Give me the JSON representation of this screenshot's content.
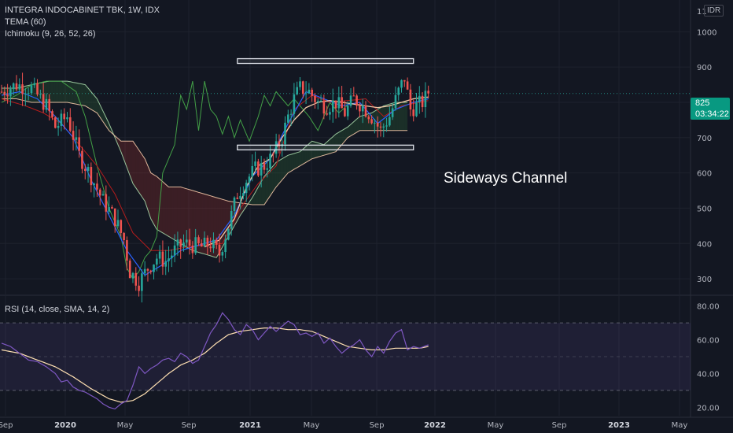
{
  "header": {
    "symbol_line": "INTEGRA INDOCABINET TBK, 1W, IDX",
    "indicator_tema": "TEMA (60)",
    "indicator_ichimoku": "Ichimoku (9, 26, 52, 26)",
    "indicator_rsi": "RSI (14, close, SMA, 14, 2)",
    "currency": "IDR"
  },
  "last_price": {
    "value": "825",
    "countdown": "03:34:22"
  },
  "annotation": "Sideways Channel",
  "colors": {
    "background": "#131722",
    "up": "#26a69a",
    "down": "#ef5350",
    "tema": "#f5c9a8",
    "tenkan": "#2962ff",
    "kijun": "#b71c1c",
    "chikou": "#43a047",
    "span_a": "#a5d6a7",
    "span_b": "#f5c9a8",
    "rsi": "#7e57c2",
    "rsi_ma": "#ffe0b2"
  },
  "chart_data": [
    {
      "type": "candlestick",
      "title": "INTEGRA INDOCABINET TBK, 1W, IDX",
      "x_ticks": [
        "Sep",
        "2020",
        "May",
        "Sep",
        "2021",
        "May",
        "Sep",
        "2022",
        "May",
        "Sep",
        "2023",
        "May"
      ],
      "y_ticks": [
        300,
        400,
        500,
        600,
        700,
        800,
        900,
        1000
      ],
      "y_top_label": "11",
      "ylim": [
        260,
        1090
      ],
      "close_anchors": [
        [
          0,
          830
        ],
        [
          5,
          850
        ],
        [
          10,
          840
        ],
        [
          15,
          790
        ],
        [
          18,
          730
        ],
        [
          22,
          760
        ],
        [
          26,
          650
        ],
        [
          30,
          590
        ],
        [
          34,
          520
        ],
        [
          38,
          470
        ],
        [
          41,
          410
        ],
        [
          43,
          320
        ],
        [
          46,
          290
        ],
        [
          49,
          330
        ],
        [
          52,
          360
        ],
        [
          55,
          350
        ],
        [
          58,
          380
        ],
        [
          61,
          400
        ],
        [
          64,
          395
        ],
        [
          67,
          390
        ],
        [
          70,
          400
        ],
        [
          73,
          370
        ],
        [
          76,
          450
        ],
        [
          79,
          540
        ],
        [
          82,
          580
        ],
        [
          85,
          610
        ],
        [
          88,
          620
        ],
        [
          91,
          650
        ],
        [
          94,
          700
        ],
        [
          96,
          760
        ],
        [
          98,
          810
        ],
        [
          100,
          840
        ],
        [
          103,
          830
        ],
        [
          106,
          800
        ],
        [
          109,
          790
        ],
        [
          112,
          800
        ],
        [
          115,
          770
        ],
        [
          118,
          810
        ],
        [
          121,
          790
        ],
        [
          124,
          760
        ],
        [
          127,
          720
        ],
        [
          130,
          760
        ],
        [
          133,
          830
        ],
        [
          135,
          870
        ],
        [
          137,
          780
        ],
        [
          139,
          790
        ],
        [
          141,
          800
        ],
        [
          143,
          825
        ]
      ],
      "tema_anchors": [
        [
          68,
          390
        ],
        [
          73,
          410
        ],
        [
          78,
          470
        ],
        [
          82,
          560
        ],
        [
          86,
          620
        ],
        [
          90,
          640
        ],
        [
          94,
          700
        ],
        [
          98,
          750
        ],
        [
          102,
          785
        ],
        [
          106,
          800
        ],
        [
          110,
          805
        ],
        [
          114,
          800
        ],
        [
          118,
          795
        ],
        [
          122,
          790
        ],
        [
          126,
          785
        ],
        [
          130,
          790
        ],
        [
          134,
          800
        ],
        [
          138,
          810
        ],
        [
          143,
          815
        ]
      ],
      "tenkan_anchors": [
        [
          0,
          820
        ],
        [
          6,
          830
        ],
        [
          12,
          810
        ],
        [
          18,
          760
        ],
        [
          24,
          700
        ],
        [
          30,
          580
        ],
        [
          36,
          480
        ],
        [
          42,
          380
        ],
        [
          48,
          310
        ],
        [
          54,
          340
        ],
        [
          60,
          380
        ],
        [
          66,
          395
        ],
        [
          72,
          410
        ],
        [
          78,
          480
        ],
        [
          84,
          590
        ],
        [
          90,
          640
        ],
        [
          96,
          740
        ],
        [
          102,
          830
        ],
        [
          108,
          810
        ],
        [
          114,
          790
        ],
        [
          120,
          800
        ],
        [
          126,
          740
        ],
        [
          132,
          780
        ],
        [
          138,
          800
        ],
        [
          143,
          810
        ]
      ],
      "kijun_anchors": [
        [
          0,
          810
        ],
        [
          8,
          790
        ],
        [
          14,
          770
        ],
        [
          20,
          740
        ],
        [
          26,
          680
        ],
        [
          32,
          620
        ],
        [
          38,
          540
        ],
        [
          44,
          430
        ],
        [
          50,
          380
        ],
        [
          56,
          380
        ],
        [
          62,
          390
        ],
        [
          68,
          395
        ],
        [
          74,
          400
        ],
        [
          80,
          500
        ],
        [
          86,
          570
        ],
        [
          92,
          620
        ],
        [
          98,
          780
        ],
        [
          104,
          820
        ],
        [
          110,
          800
        ],
        [
          116,
          805
        ],
        [
          122,
          810
        ],
        [
          128,
          760
        ],
        [
          134,
          790
        ],
        [
          140,
          800
        ],
        [
          143,
          805
        ]
      ],
      "chikou_anchors": [
        [
          0,
          800
        ],
        [
          5,
          820
        ],
        [
          10,
          850
        ],
        [
          15,
          860
        ],
        [
          20,
          860
        ],
        [
          25,
          830
        ],
        [
          28,
          760
        ],
        [
          30,
          690
        ],
        [
          32,
          620
        ],
        [
          34,
          560
        ],
        [
          36,
          500
        ],
        [
          38,
          460
        ],
        [
          40,
          420
        ],
        [
          42,
          330
        ],
        [
          44,
          300
        ],
        [
          46,
          320
        ],
        [
          48,
          360
        ],
        [
          50,
          380
        ],
        [
          52,
          420
        ],
        [
          54,
          600
        ],
        [
          56,
          640
        ],
        [
          58,
          680
        ],
        [
          60,
          820
        ],
        [
          62,
          780
        ],
        [
          64,
          860
        ],
        [
          66,
          720
        ],
        [
          68,
          860
        ],
        [
          70,
          780
        ],
        [
          72,
          760
        ],
        [
          74,
          710
        ],
        [
          76,
          760
        ],
        [
          78,
          700
        ],
        [
          80,
          750
        ],
        [
          83,
          690
        ],
        [
          86,
          760
        ],
        [
          88,
          820
        ],
        [
          90,
          790
        ],
        [
          92,
          830
        ],
        [
          94,
          810
        ],
        [
          96,
          790
        ],
        [
          98,
          810
        ],
        [
          100,
          790
        ],
        [
          103,
          760
        ],
        [
          106,
          720
        ],
        [
          110,
          800
        ],
        [
          113,
          770
        ],
        [
          117,
          800
        ]
      ],
      "span_a_anchors": [
        [
          0,
          840
        ],
        [
          5,
          840
        ],
        [
          10,
          850
        ],
        [
          16,
          860
        ],
        [
          22,
          860
        ],
        [
          28,
          850
        ],
        [
          32,
          810
        ],
        [
          36,
          740
        ],
        [
          40,
          660
        ],
        [
          44,
          570
        ],
        [
          48,
          520
        ],
        [
          50,
          470
        ],
        [
          52,
          440
        ],
        [
          56,
          420
        ],
        [
          60,
          400
        ],
        [
          64,
          380
        ],
        [
          68,
          370
        ],
        [
          72,
          360
        ],
        [
          76,
          420
        ],
        [
          80,
          480
        ],
        [
          84,
          530
        ],
        [
          88,
          590
        ],
        [
          92,
          630
        ],
        [
          96,
          650
        ],
        [
          100,
          660
        ],
        [
          104,
          690
        ],
        [
          108,
          680
        ],
        [
          112,
          710
        ],
        [
          116,
          730
        ],
        [
          120,
          760
        ],
        [
          124,
          770
        ],
        [
          128,
          790
        ],
        [
          132,
          800
        ],
        [
          136,
          800
        ]
      ],
      "span_b_anchors": [
        [
          0,
          810
        ],
        [
          5,
          810
        ],
        [
          10,
          800
        ],
        [
          16,
          800
        ],
        [
          22,
          800
        ],
        [
          28,
          790
        ],
        [
          32,
          770
        ],
        [
          36,
          720
        ],
        [
          40,
          690
        ],
        [
          44,
          690
        ],
        [
          48,
          640
        ],
        [
          50,
          600
        ],
        [
          52,
          590
        ],
        [
          56,
          560
        ],
        [
          60,
          560
        ],
        [
          64,
          550
        ],
        [
          68,
          540
        ],
        [
          72,
          530
        ],
        [
          76,
          520
        ],
        [
          80,
          515
        ],
        [
          84,
          510
        ],
        [
          88,
          510
        ],
        [
          92,
          560
        ],
        [
          96,
          600
        ],
        [
          100,
          620
        ],
        [
          104,
          640
        ],
        [
          108,
          650
        ],
        [
          112,
          660
        ],
        [
          116,
          700
        ],
        [
          120,
          720
        ],
        [
          124,
          720
        ],
        [
          128,
          720
        ],
        [
          132,
          720
        ],
        [
          136,
          720
        ]
      ],
      "cloud_end_week": 136,
      "channel": {
        "upper": [
          90,
          917
        ],
        "lower": [
          90,
          672
        ],
        "x_range": [
          79,
          138
        ]
      },
      "last_price": 825
    },
    {
      "type": "line",
      "title": "RSI (14, close, SMA, 14, 2)",
      "y_ticks": [
        20,
        40,
        60,
        80
      ],
      "y_tick_labels": [
        "20.00",
        "40.00",
        "60.00",
        "80.00"
      ],
      "ylim": [
        15,
        85
      ],
      "band": [
        30,
        70
      ],
      "middle": 50,
      "rsi_anchors": [
        [
          0,
          58
        ],
        [
          3,
          56
        ],
        [
          6,
          52
        ],
        [
          9,
          48
        ],
        [
          12,
          47
        ],
        [
          15,
          44
        ],
        [
          18,
          40
        ],
        [
          20,
          35
        ],
        [
          22,
          36
        ],
        [
          24,
          32
        ],
        [
          26,
          30
        ],
        [
          28,
          29
        ],
        [
          30,
          27
        ],
        [
          32,
          25
        ],
        [
          34,
          22
        ],
        [
          36,
          20
        ],
        [
          38,
          19
        ],
        [
          40,
          22
        ],
        [
          42,
          24
        ],
        [
          44,
          33
        ],
        [
          46,
          44
        ],
        [
          48,
          40
        ],
        [
          50,
          43
        ],
        [
          52,
          45
        ],
        [
          54,
          48
        ],
        [
          56,
          49
        ],
        [
          58,
          47
        ],
        [
          60,
          52
        ],
        [
          62,
          50
        ],
        [
          64,
          46
        ],
        [
          66,
          48
        ],
        [
          68,
          56
        ],
        [
          70,
          64
        ],
        [
          72,
          69
        ],
        [
          74,
          76
        ],
        [
          76,
          72
        ],
        [
          78,
          66
        ],
        [
          80,
          63
        ],
        [
          82,
          69
        ],
        [
          84,
          66
        ],
        [
          86,
          60
        ],
        [
          88,
          64
        ],
        [
          90,
          68
        ],
        [
          92,
          65
        ],
        [
          94,
          68
        ],
        [
          96,
          71
        ],
        [
          98,
          69
        ],
        [
          100,
          63
        ],
        [
          102,
          64
        ],
        [
          104,
          62
        ],
        [
          106,
          64
        ],
        [
          108,
          58
        ],
        [
          110,
          61
        ],
        [
          112,
          56
        ],
        [
          114,
          52
        ],
        [
          116,
          55
        ],
        [
          118,
          57
        ],
        [
          120,
          60
        ],
        [
          122,
          54
        ],
        [
          124,
          50
        ],
        [
          126,
          56
        ],
        [
          128,
          52
        ],
        [
          130,
          59
        ],
        [
          132,
          64
        ],
        [
          134,
          66
        ],
        [
          136,
          54
        ],
        [
          138,
          56
        ],
        [
          140,
          55
        ],
        [
          143,
          57
        ]
      ],
      "rsi_ma_anchors": [
        [
          0,
          54
        ],
        [
          6,
          52
        ],
        [
          12,
          48
        ],
        [
          18,
          44
        ],
        [
          24,
          38
        ],
        [
          30,
          31
        ],
        [
          36,
          25
        ],
        [
          40,
          23
        ],
        [
          44,
          24
        ],
        [
          48,
          28
        ],
        [
          52,
          34
        ],
        [
          56,
          40
        ],
        [
          60,
          45
        ],
        [
          64,
          48
        ],
        [
          68,
          52
        ],
        [
          72,
          58
        ],
        [
          76,
          63
        ],
        [
          80,
          65
        ],
        [
          84,
          66
        ],
        [
          88,
          67
        ],
        [
          92,
          67
        ],
        [
          96,
          66
        ],
        [
          100,
          66
        ],
        [
          104,
          65
        ],
        [
          108,
          62
        ],
        [
          112,
          59
        ],
        [
          116,
          56
        ],
        [
          120,
          55
        ],
        [
          124,
          54
        ],
        [
          128,
          54
        ],
        [
          132,
          55
        ],
        [
          136,
          55
        ],
        [
          140,
          55
        ],
        [
          143,
          56
        ]
      ]
    }
  ]
}
